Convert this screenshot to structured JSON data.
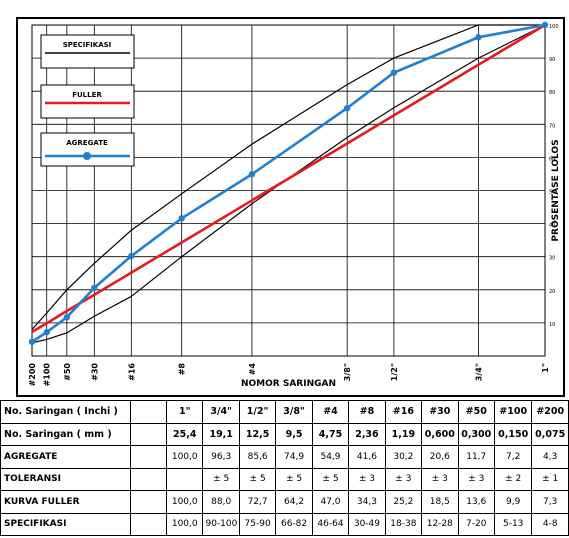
{
  "chart_data": {
    "type": "line",
    "xlabel": "NOMOR SARINGAN",
    "ylabel": "PROSENTASE LOLOS",
    "x_scale": "power-0.45",
    "ylim": [
      0,
      100
    ],
    "y_ticks": [
      10,
      20,
      30,
      40,
      50,
      60,
      70,
      80,
      90,
      100
    ],
    "y_tick_labels": [
      "10",
      "20",
      "30",
      "40",
      "50",
      "60",
      "70",
      "80",
      "90",
      "100"
    ],
    "sieve_sizes_mm": [
      0.075,
      0.15,
      0.3,
      0.6,
      1.19,
      2.36,
      4.75,
      9.5,
      12.5,
      19.1,
      25.4
    ],
    "sieve_tick_labels": [
      "#200",
      "#100",
      "#50",
      "#30",
      "#16",
      "#8",
      "#4",
      "3/8\"",
      "1/2\"",
      "3/4\"",
      "1\""
    ],
    "legend": [
      {
        "label": "SPECIFIKASI",
        "color": "#000000"
      },
      {
        "label": "FULLER",
        "color": "#e8191c"
      },
      {
        "label": "AGREGATE",
        "color": "#1f7fd1"
      }
    ],
    "series": [
      {
        "name": "SPECIFIKASI",
        "color": "#000000",
        "values": [
          8,
          13,
          20,
          28,
          38,
          49,
          64,
          82,
          90,
          100,
          100
        ]
      },
      {
        "name": "SPECIFIKASI",
        "color": "#000000",
        "values": [
          4,
          5,
          7,
          12,
          18,
          30,
          46,
          66,
          75,
          90,
          100
        ]
      },
      {
        "name": "FULLER",
        "color": "#e8191c",
        "values": [
          7.3,
          9.9,
          13.6,
          18.5,
          25.2,
          34.3,
          47.0,
          64.2,
          72.7,
          88.0,
          100.0
        ]
      },
      {
        "name": "AGREGATE",
        "color": "#1f7fd1",
        "values": [
          4.3,
          7.2,
          11.7,
          20.6,
          30.2,
          41.6,
          54.9,
          74.9,
          85.6,
          96.3,
          100.0
        ]
      }
    ]
  },
  "table": {
    "columns_inch": [
      "1\"",
      "3/4\"",
      "1/2\"",
      "3/8\"",
      "#4",
      "#8",
      "#16",
      "#30",
      "#50",
      "#100",
      "#200"
    ],
    "rows": [
      {
        "label": "No. Saringan ( mm )",
        "values": [
          "25,4",
          "19,1",
          "12,5",
          "9,5",
          "4,75",
          "2,36",
          "1,19",
          "0,600",
          "0,300",
          "0,150",
          "0,075"
        ]
      },
      {
        "label": "AGREGATE",
        "values": [
          "100,0",
          "96,3",
          "85,6",
          "74,9",
          "54,9",
          "41,6",
          "30,2",
          "20,6",
          "11,7",
          "7,2",
          "4,3"
        ]
      },
      {
        "label": "TOLERANSI",
        "values": [
          "",
          "± 5",
          "± 5",
          "± 5",
          "± 5",
          "± 3",
          "± 3",
          "± 3",
          "± 3",
          "± 2",
          "± 1"
        ]
      },
      {
        "label": "KURVA FULLER",
        "values": [
          "100,0",
          "88,0",
          "72,7",
          "64,2",
          "47,0",
          "34,3",
          "25,2",
          "18,5",
          "13,6",
          "9,9",
          "7,3"
        ]
      },
      {
        "label": "SPECIFIKASI",
        "values": [
          "100,0",
          "90-100",
          "75-90",
          "66-82",
          "46-64",
          "30-49",
          "18-38",
          "12-28",
          "7-20",
          "5-13",
          "4-8"
        ]
      }
    ],
    "header_label": "No. Saringan ( Inchi )"
  }
}
